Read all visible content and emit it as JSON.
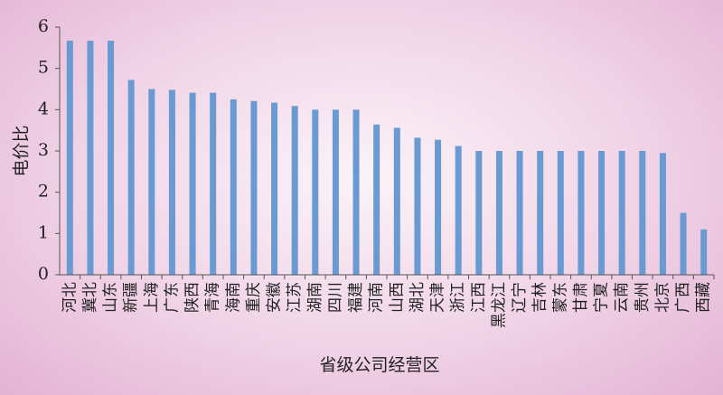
{
  "chart_data": {
    "type": "bar",
    "title": "",
    "xlabel": "省级公司经营区",
    "ylabel": "电价比",
    "ylim": [
      0,
      6
    ],
    "yticks": [
      0,
      1,
      2,
      3,
      4,
      5,
      6
    ],
    "grid": false,
    "legend": "none",
    "bar_color": "#6a9ad2",
    "categories": [
      "河北",
      "冀北",
      "山东",
      "新疆",
      "上海",
      "广东",
      "陕西",
      "青海",
      "海南",
      "重庆",
      "安徽",
      "江苏",
      "湖南",
      "四川",
      "福建",
      "河南",
      "山西",
      "湖北",
      "天津",
      "浙江",
      "江西",
      "黑龙江",
      "辽宁",
      "吉林",
      "蒙东",
      "甘肃",
      "宁夏",
      "云南",
      "贵州",
      "北京",
      "广西",
      "西藏"
    ],
    "values": [
      5.67,
      5.67,
      5.67,
      4.72,
      4.5,
      4.48,
      4.41,
      4.41,
      4.25,
      4.21,
      4.17,
      4.09,
      4.0,
      4.0,
      4.0,
      3.64,
      3.56,
      3.32,
      3.27,
      3.12,
      3.0,
      3.0,
      3.0,
      3.0,
      3.0,
      3.0,
      3.0,
      3.0,
      3.0,
      2.95,
      1.5,
      1.1
    ]
  }
}
